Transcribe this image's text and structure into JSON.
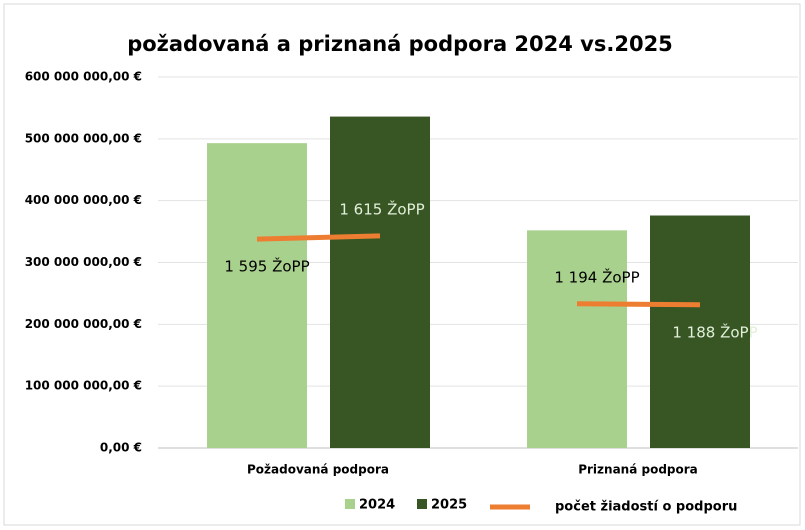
{
  "chart_data": {
    "type": "bar",
    "title": "požadovaná a priznaná podpora 2024 vs.2025",
    "categories": [
      "Požadovaná podpora",
      "Priznaná podpora"
    ],
    "series": [
      {
        "name": "2024",
        "color": "#a9d18e",
        "values": [
          493000000,
          352000000
        ]
      },
      {
        "name": "2025",
        "color": "#375623",
        "values": [
          536000000,
          376000000
        ]
      }
    ],
    "line": {
      "name": "počet žiadostí o podporu",
      "color": "#ed7d31",
      "axis": "y2",
      "values_2024": [
        1595,
        1194
      ],
      "value_labels_2024": [
        "1 595  ŽoPP",
        "1 194 ŽoPP"
      ],
      "values_2025": [
        1615,
        1188
      ],
      "value_labels_2025": [
        "1 615 ŽoPP",
        "1 188 ŽoPP"
      ]
    },
    "ylim": [
      0,
      600000000
    ],
    "yticks": [
      {
        "value": 0,
        "label": "0,00 €"
      },
      {
        "value": 100000000,
        "label": "100 000 000,00 €"
      },
      {
        "value": 200000000,
        "label": "200 000 000,00 €"
      },
      {
        "value": 300000000,
        "label": "300 000 000,00 €"
      },
      {
        "value": 400000000,
        "label": "400 000 000,00 €"
      },
      {
        "value": 500000000,
        "label": "500 000 000,00 €"
      },
      {
        "value": 600000000,
        "label": "600 000 000,00 €"
      }
    ],
    "y2lim": [
      300,
      2600
    ],
    "grid": true
  }
}
